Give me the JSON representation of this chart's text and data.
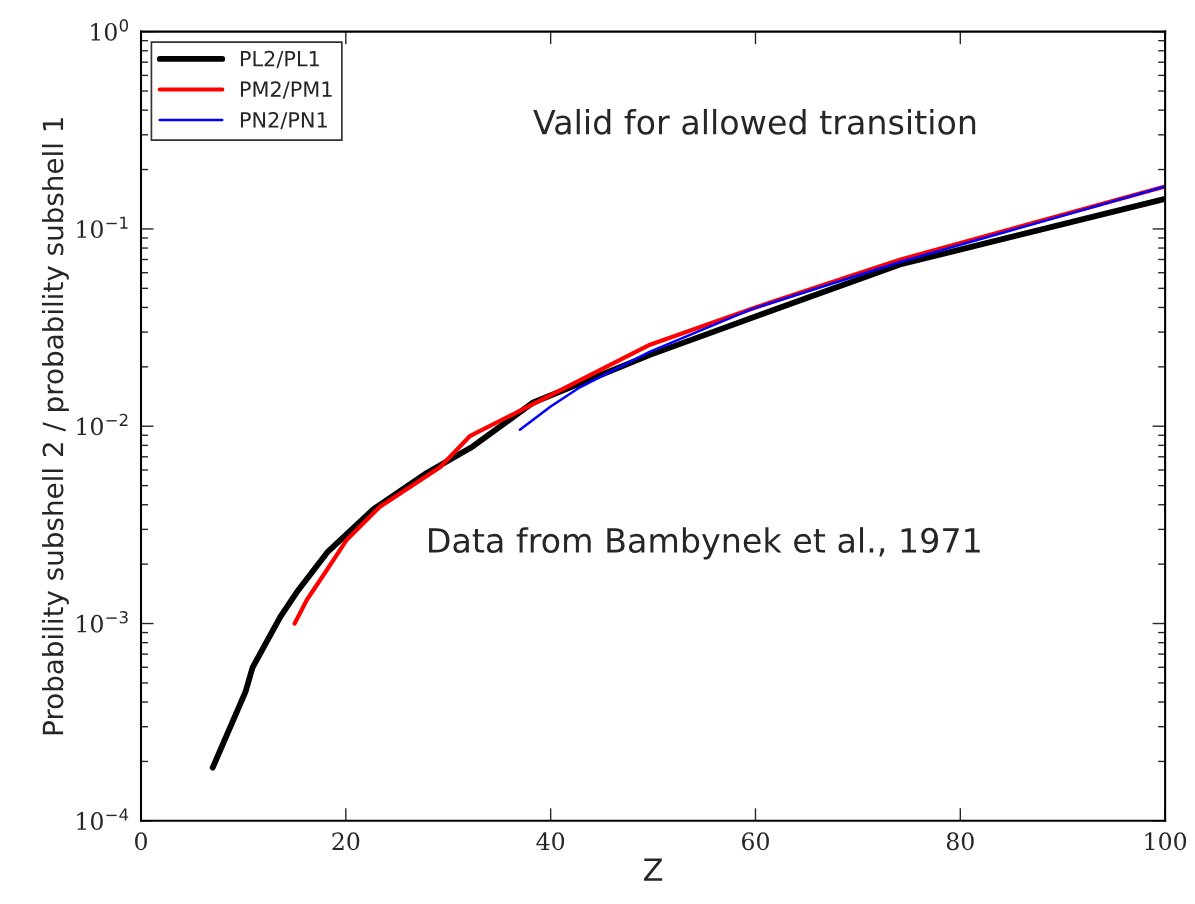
{
  "chart_data": {
    "type": "line",
    "xlabel": "Z",
    "ylabel": "Probability subshell 2 / probability subshell 1",
    "xlim": [
      0,
      100
    ],
    "xticks": [
      0,
      20,
      40,
      60,
      80,
      100
    ],
    "ylim": [
      0.0001,
      1
    ],
    "log": "y",
    "yticks": [
      {
        "value": 0.0001,
        "label": "10$^{−4}$"
      },
      {
        "value": 0.001,
        "label": "10$^{−3}$"
      },
      {
        "value": 0.01,
        "label": "10$^{−2}$"
      },
      {
        "value": 0.1,
        "label": "10$^{−1}$"
      },
      {
        "value": 1,
        "label": "10$^{0}$"
      }
    ],
    "legend": "top left",
    "grid": false,
    "annotations": [
      "Valid for allowed transition",
      "Data from Bambynek et al., 1971"
    ],
    "series": [
      {
        "name": "PL2/PL1",
        "color": "#000000",
        "x": [
          7,
          10.2,
          10.9,
          13.6,
          15.2,
          18.2,
          22.7,
          27.9,
          32.4,
          38.3,
          49.7,
          60,
          74.1,
          100
        ],
        "values": [
          0.000186,
          0.00045,
          0.0006,
          0.00108,
          0.00144,
          0.0023,
          0.0038,
          0.0058,
          0.0079,
          0.0132,
          0.023,
          0.036,
          0.066,
          0.142
        ]
      },
      {
        "name": "PM2/PM1",
        "color": "#ff0000",
        "x": [
          15,
          16.2,
          18,
          20.1,
          23.3,
          29.2,
          32.1,
          49.7,
          60,
          74.1,
          100
        ],
        "values": [
          0.001,
          0.00132,
          0.00182,
          0.00266,
          0.0039,
          0.0062,
          0.0089,
          0.0259,
          0.04,
          0.0698,
          0.164
        ]
      },
      {
        "name": "PN2/PN1",
        "color": "#0000ff",
        "x": [
          37,
          40,
          42.9,
          49.7,
          59.5,
          74.1,
          100
        ],
        "values": [
          0.0096,
          0.0126,
          0.0158,
          0.0239,
          0.039,
          0.068,
          0.164
        ]
      }
    ]
  }
}
